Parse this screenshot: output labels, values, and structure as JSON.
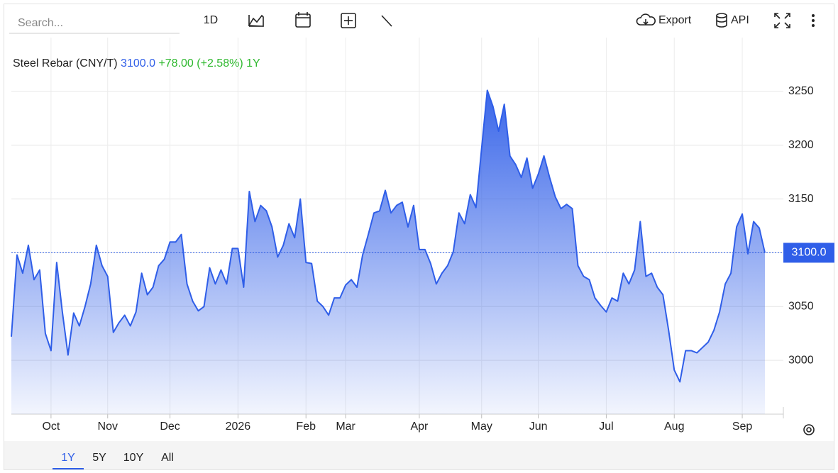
{
  "toolbar": {
    "search_placeholder": "Search...",
    "interval": "1D",
    "export": "Export",
    "api": "API"
  },
  "ranges": [
    "1Y",
    "5Y",
    "10Y",
    "All"
  ],
  "chart_data": {
    "type": "area",
    "title": "Steel Rebar (CNY/T)",
    "price": "3100.0",
    "change": "+78.00",
    "change_pct": "(+2.58%)",
    "period": "1Y",
    "color": "#2f5ee8",
    "grid": true,
    "ylim": [
      2950,
      3300
    ],
    "yticks": [
      3000,
      3050,
      3100,
      3150,
      3200,
      3250
    ],
    "categories": [
      null,
      null,
      null,
      null,
      null,
      null,
      null,
      "Oct",
      null,
      null,
      null,
      null,
      null,
      null,
      null,
      null,
      null,
      "Nov",
      null,
      null,
      null,
      null,
      null,
      null,
      null,
      null,
      null,
      null,
      "Dec",
      null,
      null,
      null,
      null,
      null,
      null,
      null,
      null,
      null,
      null,
      null,
      "2026",
      null,
      null,
      null,
      null,
      null,
      null,
      null,
      null,
      null,
      null,
      null,
      "Feb",
      null,
      null,
      null,
      null,
      null,
      null,
      "Mar",
      null,
      null,
      null,
      null,
      null,
      null,
      null,
      null,
      null,
      null,
      null,
      null,
      "Apr",
      null,
      null,
      null,
      null,
      null,
      null,
      null,
      null,
      null,
      null,
      "May",
      null,
      null,
      null,
      null,
      null,
      null,
      null,
      null,
      null,
      "Jun",
      null,
      null,
      null,
      null,
      null,
      null,
      null,
      null,
      null,
      null,
      null,
      "Jul",
      null,
      null,
      null,
      null,
      null,
      null,
      null,
      null,
      null,
      null,
      null,
      "Aug",
      null,
      null,
      null,
      null,
      null,
      null,
      null,
      null,
      null,
      null,
      null,
      "Sep",
      null,
      null,
      null,
      null
    ],
    "values": [
      3022,
      3098,
      3081,
      3107,
      3075,
      3084,
      3025,
      3009,
      3091,
      3045,
      3005,
      3044,
      3032,
      3050,
      3071,
      3107,
      3088,
      3078,
      3026,
      3035,
      3042,
      3032,
      3045,
      3081,
      3061,
      3068,
      3088,
      3094,
      3110,
      3110,
      3117,
      3071,
      3055,
      3046,
      3050,
      3086,
      3071,
      3084,
      3071,
      3104,
      3104,
      3068,
      3157,
      3129,
      3144,
      3139,
      3124,
      3096,
      3107,
      3127,
      3114,
      3150,
      3091,
      3090,
      3055,
      3050,
      3042,
      3058,
      3058,
      3070,
      3075,
      3068,
      3098,
      3117,
      3137,
      3139,
      3158,
      3137,
      3144,
      3147,
      3124,
      3144,
      3103,
      3103,
      3090,
      3071,
      3081,
      3088,
      3101,
      3137,
      3127,
      3154,
      3142,
      3197,
      3251,
      3236,
      3213,
      3238,
      3190,
      3182,
      3170,
      3188,
      3160,
      3173,
      3190,
      3170,
      3152,
      3141,
      3145,
      3141,
      3088,
      3078,
      3075,
      3058,
      3051,
      3045,
      3058,
      3055,
      3081,
      3071,
      3084,
      3129,
      3078,
      3081,
      3068,
      3061,
      3028,
      2991,
      2980,
      3009,
      3009,
      3007,
      3012,
      3017,
      3028,
      3045,
      3071,
      3081,
      3124,
      3136,
      3099,
      3129,
      3123,
      3100
    ]
  }
}
